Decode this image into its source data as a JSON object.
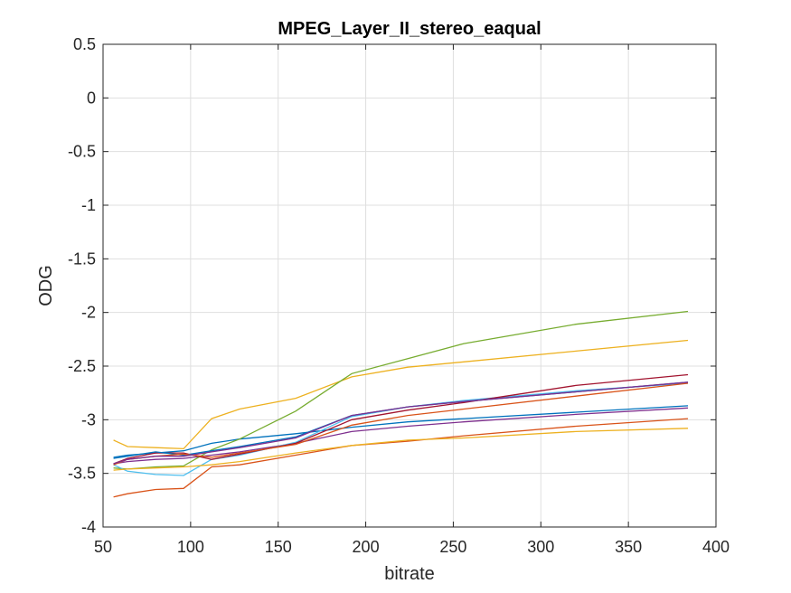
{
  "chart_data": {
    "type": "line",
    "title": "MPEG_Layer_II_stereo_eaqual",
    "xlabel": "bitrate",
    "ylabel": "ODG",
    "xlim": [
      50,
      400
    ],
    "ylim": [
      -4,
      0.5
    ],
    "xticks": [
      50,
      100,
      150,
      200,
      250,
      300,
      350,
      400
    ],
    "yticks": [
      0.5,
      0,
      -0.5,
      -1,
      -1.5,
      -2,
      -2.5,
      -3,
      -3.5,
      -4
    ],
    "xtick_labels": [
      "50",
      "100",
      "150",
      "200",
      "250",
      "300",
      "350",
      "400"
    ],
    "ytick_labels": [
      "0.5",
      "0",
      "-0.5",
      "-1",
      "-1.5",
      "-2",
      "-2.5",
      "-3",
      "-3.5",
      "-4"
    ],
    "grid": true,
    "series": [
      {
        "color": "#0072BD",
        "x": [
          56,
          64,
          80,
          96,
          112,
          128,
          160,
          192,
          224,
          256,
          320,
          384
        ],
        "y": [
          -3.35,
          -3.33,
          -3.31,
          -3.29,
          -3.22,
          -3.18,
          -3.13,
          -3.07,
          -3.02,
          -2.99,
          -2.93,
          -2.87
        ]
      },
      {
        "color": "#D95319",
        "x": [
          56,
          64,
          80,
          96,
          112,
          128,
          160,
          192,
          224,
          256,
          320,
          384
        ],
        "y": [
          -3.72,
          -3.69,
          -3.65,
          -3.64,
          -3.44,
          -3.42,
          -3.33,
          -3.24,
          -3.2,
          -3.15,
          -3.06,
          -2.99
        ]
      },
      {
        "color": "#EDB120",
        "x": [
          56,
          64,
          80,
          96,
          112,
          128,
          160,
          192,
          224,
          256,
          320,
          384
        ],
        "y": [
          -3.19,
          -3.25,
          -3.26,
          -3.27,
          -2.99,
          -2.9,
          -2.8,
          -2.6,
          -2.51,
          -2.46,
          -2.36,
          -2.26
        ]
      },
      {
        "color": "#7E2F8E",
        "x": [
          56,
          64,
          80,
          96,
          112,
          128,
          160,
          192,
          224,
          256,
          320,
          384
        ],
        "y": [
          -3.41,
          -3.39,
          -3.37,
          -3.36,
          -3.33,
          -3.3,
          -3.22,
          -3.11,
          -3.06,
          -3.02,
          -2.95,
          -2.89
        ]
      },
      {
        "color": "#77AC30",
        "x": [
          56,
          64,
          80,
          96,
          112,
          128,
          160,
          192,
          224,
          256,
          320,
          384
        ],
        "y": [
          -3.45,
          -3.46,
          -3.44,
          -3.43,
          -3.28,
          -3.18,
          -2.92,
          -2.57,
          -2.43,
          -2.29,
          -2.11,
          -1.99
        ]
      },
      {
        "color": "#4DBEEE",
        "x": [
          56,
          64,
          80,
          96,
          112,
          128,
          160,
          192,
          224,
          256,
          320,
          384
        ],
        "y": [
          -3.42,
          -3.48,
          -3.51,
          -3.52,
          -3.37,
          -3.33,
          -3.21,
          -2.97,
          -2.88,
          -2.82,
          -2.73,
          -2.66
        ]
      },
      {
        "color": "#A2142F",
        "x": [
          56,
          64,
          80,
          96,
          112,
          128,
          160,
          192,
          224,
          256,
          320,
          384
        ],
        "y": [
          -3.41,
          -3.36,
          -3.31,
          -3.31,
          -3.37,
          -3.32,
          -3.22,
          -3.0,
          -2.91,
          -2.84,
          -2.68,
          -2.58
        ]
      },
      {
        "color": "#0072BD",
        "x": [
          56,
          64,
          80,
          96,
          112,
          128,
          160,
          192,
          224,
          256,
          320,
          384
        ],
        "y": [
          -3.36,
          -3.34,
          -3.3,
          -3.33,
          -3.29,
          -3.25,
          -3.16,
          -2.96,
          -2.88,
          -2.83,
          -2.74,
          -2.65
        ]
      },
      {
        "color": "#D95319",
        "x": [
          56,
          64,
          80,
          96,
          112,
          128,
          160,
          192,
          224,
          256,
          320,
          384
        ],
        "y": [
          -3.42,
          -3.37,
          -3.34,
          -3.32,
          -3.35,
          -3.31,
          -3.23,
          -3.05,
          -2.96,
          -2.9,
          -2.78,
          -2.66
        ]
      },
      {
        "color": "#EDB120",
        "x": [
          56,
          64,
          80,
          96,
          112,
          128,
          160,
          192,
          224,
          256,
          320,
          384
        ],
        "y": [
          -3.47,
          -3.46,
          -3.45,
          -3.44,
          -3.42,
          -3.39,
          -3.31,
          -3.24,
          -3.19,
          -3.17,
          -3.11,
          -3.08
        ]
      },
      {
        "color": "#7E2F8E",
        "x": [
          56,
          64,
          80,
          96,
          112,
          128,
          160,
          192,
          224,
          256,
          320,
          384
        ],
        "y": [
          -3.41,
          -3.37,
          -3.34,
          -3.34,
          -3.3,
          -3.26,
          -3.17,
          -2.96,
          -2.88,
          -2.83,
          -2.74,
          -2.65
        ]
      }
    ]
  }
}
